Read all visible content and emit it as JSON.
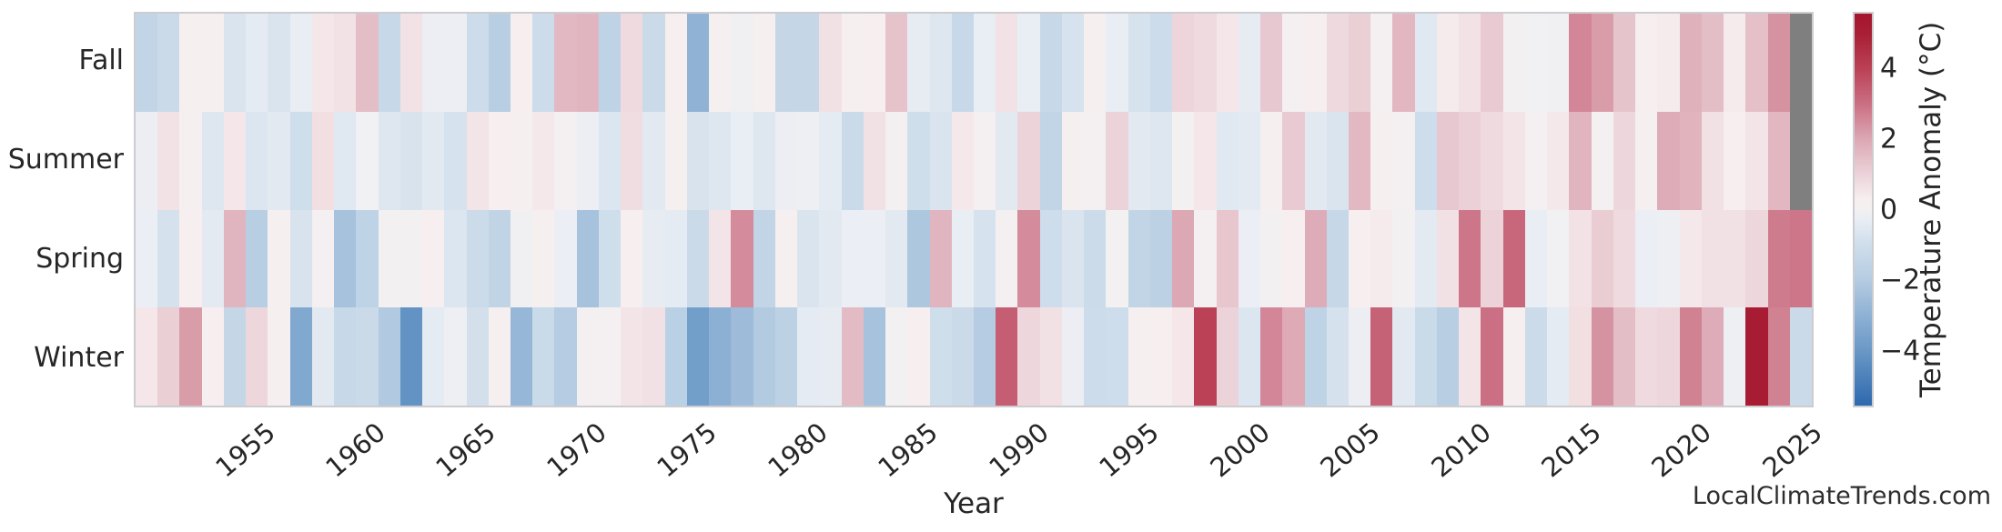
{
  "watermark": {
    "text": "LocalClimateTrends.com"
  },
  "chart_data": {
    "type": "heatmap",
    "title": "",
    "xlabel": "Year",
    "ylabel": "",
    "x": [
      1950,
      1951,
      1952,
      1953,
      1954,
      1955,
      1956,
      1957,
      1958,
      1959,
      1960,
      1961,
      1962,
      1963,
      1964,
      1965,
      1966,
      1967,
      1968,
      1969,
      1970,
      1971,
      1972,
      1973,
      1974,
      1975,
      1976,
      1977,
      1978,
      1979,
      1980,
      1981,
      1982,
      1983,
      1984,
      1985,
      1986,
      1987,
      1988,
      1989,
      1990,
      1991,
      1992,
      1993,
      1994,
      1995,
      1996,
      1997,
      1998,
      1999,
      2000,
      2001,
      2002,
      2003,
      2004,
      2005,
      2006,
      2007,
      2008,
      2009,
      2010,
      2011,
      2012,
      2013,
      2014,
      2015,
      2016,
      2017,
      2018,
      2019,
      2020,
      2021,
      2022,
      2023,
      2024,
      2025
    ],
    "x_ticks": [
      1955,
      1960,
      1965,
      1970,
      1975,
      1980,
      1985,
      1990,
      1995,
      2000,
      2005,
      2010,
      2015,
      2020,
      2025
    ],
    "y": [
      "Fall",
      "Summer",
      "Spring",
      "Winter"
    ],
    "series": [
      {
        "name": "Fall",
        "values": [
          -1.5,
          -1.2,
          0.2,
          0.2,
          -0.7,
          -0.4,
          -0.7,
          -0.3,
          0.5,
          0.6,
          1.5,
          -1.3,
          0.6,
          -0.2,
          -0.2,
          -1.1,
          -1.9,
          0.3,
          -1.1,
          1.6,
          1.7,
          -1.6,
          0.8,
          -1.2,
          0.3,
          -3.0,
          0.15,
          -0.1,
          0.2,
          -1.4,
          -1.4,
          0.65,
          0.2,
          0.25,
          1.4,
          -0.35,
          -0.6,
          -1.3,
          -0.3,
          0.6,
          -0.3,
          -1.3,
          -0.8,
          0.15,
          -0.3,
          -0.8,
          -1.1,
          0.95,
          0.8,
          0.5,
          -0.35,
          1.25,
          0.05,
          0.25,
          0.85,
          1.1,
          0.1,
          1.65,
          -0.55,
          0.4,
          0.6,
          1.2,
          0.0,
          -0.05,
          -0.1,
          2.6,
          2.2,
          1.35,
          0.25,
          0.4,
          1.8,
          1.5,
          0.4,
          1.45,
          2.4,
          null
        ]
      },
      {
        "name": "Summer",
        "values": [
          -0.2,
          0.6,
          0.15,
          -0.6,
          0.5,
          -0.65,
          -0.5,
          -1.0,
          0.7,
          -0.55,
          -0.05,
          -0.6,
          -0.75,
          -0.5,
          -0.8,
          0.55,
          0.25,
          0.15,
          0.45,
          0.1,
          -0.2,
          -0.65,
          0.75,
          -0.5,
          0.2,
          -0.75,
          -0.6,
          -0.3,
          -0.6,
          -0.2,
          -0.15,
          -0.4,
          -1.2,
          0.65,
          0.1,
          -1.0,
          -0.7,
          0.45,
          0.05,
          -0.5,
          1.0,
          -1.5,
          0.15,
          0.05,
          1.0,
          -0.5,
          -0.6,
          0.0,
          0.5,
          -0.55,
          -0.45,
          0.15,
          1.2,
          -0.5,
          -0.7,
          1.6,
          0.2,
          0.1,
          -1.05,
          1.25,
          1.05,
          0.8,
          0.55,
          0.1,
          0.45,
          1.7,
          0.05,
          0.9,
          0.2,
          1.9,
          1.75,
          0.65,
          0.3,
          0.55,
          1.65,
          null
        ]
      },
      {
        "name": "Spring",
        "values": [
          -0.25,
          -0.85,
          0.3,
          -0.45,
          1.7,
          -1.9,
          0.15,
          -0.75,
          0.1,
          -2.4,
          -1.6,
          0.0,
          0.0,
          0.25,
          -0.65,
          -1.15,
          -1.55,
          -0.1,
          0.2,
          -0.25,
          -2.4,
          -1.0,
          0.25,
          -0.35,
          -0.4,
          -1.2,
          0.55,
          2.5,
          -1.5,
          0.2,
          -0.7,
          -0.5,
          -0.25,
          -0.25,
          -0.5,
          -2.2,
          1.7,
          -0.3,
          -0.8,
          0.1,
          2.5,
          -1.05,
          -0.7,
          -1.15,
          0.0,
          -1.5,
          -1.75,
          2.0,
          0.05,
          1.3,
          -0.25,
          0.0,
          0.25,
          1.9,
          -1.35,
          0.3,
          0.4,
          0.0,
          -0.45,
          0.65,
          2.9,
          1.0,
          3.2,
          -0.3,
          -0.05,
          0.6,
          1.15,
          0.8,
          -0.25,
          -0.15,
          0.45,
          0.65,
          0.65,
          0.9,
          2.8,
          2.9
        ]
      },
      {
        "name": "Winter",
        "values": [
          0.5,
          1.1,
          2.2,
          0.3,
          -1.4,
          0.9,
          0.15,
          -3.4,
          -0.5,
          -1.3,
          -1.2,
          -2.1,
          -4.2,
          -0.4,
          -0.15,
          -0.9,
          0.15,
          -2.8,
          -1.25,
          -2.0,
          0.05,
          0.05,
          0.55,
          0.65,
          -1.8,
          -3.8,
          -3.1,
          -2.6,
          -2.05,
          -1.7,
          -0.4,
          -0.35,
          1.55,
          -2.4,
          0.0,
          0.3,
          -1.0,
          -1.2,
          -2.0,
          3.4,
          0.9,
          0.65,
          -0.2,
          -1.1,
          -1.05,
          0.15,
          0.25,
          0.5,
          4.0,
          1.0,
          -0.65,
          2.6,
          1.95,
          -1.6,
          -0.85,
          -0.2,
          3.3,
          -0.5,
          -1.25,
          -1.9,
          0.55,
          3.0,
          0.15,
          -1.15,
          -0.4,
          0.7,
          2.4,
          1.5,
          0.8,
          0.9,
          2.7,
          1.9,
          -0.15,
          5.2,
          2.7,
          -1.2
        ]
      }
    ],
    "missing_cells": [
      {
        "season": "Fall",
        "year": 2025
      },
      {
        "season": "Summer",
        "year": 2025
      }
    ],
    "missing_color": "#7f7f7f",
    "colorbar": {
      "label": "Temperature Anomaly (°C)",
      "ticks": [
        4,
        2,
        0,
        -2,
        -4
      ],
      "tick_labels": [
        "4",
        "2",
        "0",
        "−2",
        "−4"
      ],
      "vmin": -5.6,
      "vmax": 5.6,
      "anchors": [
        [
          -5.6,
          "#2e69ae"
        ],
        [
          -4.0,
          "#6b99c7"
        ],
        [
          -3.0,
          "#8fb2d5"
        ],
        [
          -2.0,
          "#b5cce2"
        ],
        [
          -1.0,
          "#cfdeeb"
        ],
        [
          -0.3,
          "#e9edf4"
        ],
        [
          0.0,
          "#f3f0f1"
        ],
        [
          0.3,
          "#f7eeef"
        ],
        [
          1.0,
          "#ecd3d9"
        ],
        [
          2.0,
          "#dca8b4"
        ],
        [
          3.0,
          "#cb7084"
        ],
        [
          4.0,
          "#bb4256"
        ],
        [
          5.0,
          "#a82035"
        ],
        [
          5.6,
          "#a5152d"
        ]
      ]
    },
    "grid": false,
    "legend_position": "right-colorbar"
  }
}
